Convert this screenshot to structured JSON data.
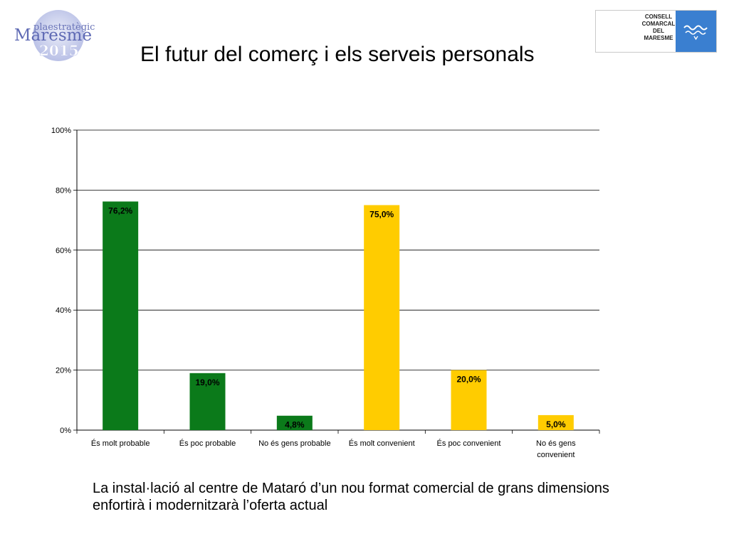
{
  "logo_left": {
    "line1": "plaestratègic",
    "line2": "Maresme",
    "line3": "2015"
  },
  "logo_right": {
    "lines": [
      "CONSELL",
      "COMARCAL",
      "DEL",
      "MARESME"
    ]
  },
  "title": "El futur del comerç i els serveis personals",
  "chart_data": {
    "type": "bar",
    "categories": [
      "És molt probable",
      "És poc probable",
      "No és gens probable",
      "És molt convenient",
      "És poc convenient",
      "No és gens convenient"
    ],
    "category_lines": [
      [
        "És molt probable"
      ],
      [
        "És poc probable"
      ],
      [
        "No és gens probable"
      ],
      [
        "És molt convenient"
      ],
      [
        "És poc convenient"
      ],
      [
        "No és gens",
        "convenient"
      ]
    ],
    "values": [
      76.2,
      19.0,
      4.8,
      75.0,
      20.0,
      5.0
    ],
    "data_labels": [
      "76,2%",
      "19,0%",
      "4,8%",
      "75,0%",
      "20,0%",
      "5,0%"
    ],
    "bar_colors": [
      "#0b7a1a",
      "#0b7a1a",
      "#0b7a1a",
      "#ffcc00",
      "#ffcc00",
      "#ffcc00"
    ],
    "yticks": [
      "0%",
      "20%",
      "40%",
      "60%",
      "80%",
      "100%"
    ],
    "ylim": [
      0,
      100
    ],
    "grid": true,
    "title": "",
    "xlabel": "",
    "ylabel": ""
  },
  "caption": "La instal·lació al centre de Mataró d’un nou format comercial de grans dimensions enfortirà i modernitzarà l’oferta actual"
}
